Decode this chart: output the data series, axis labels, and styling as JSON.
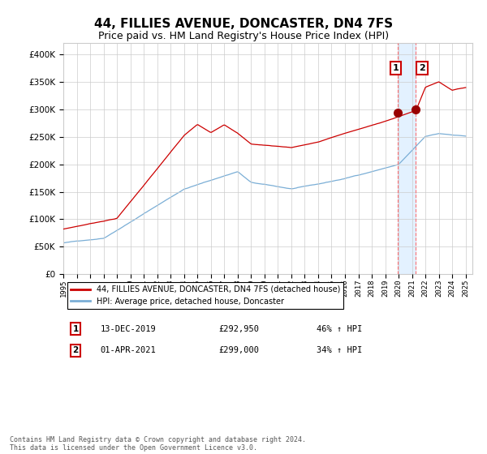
{
  "title": "44, FILLIES AVENUE, DONCASTER, DN4 7FS",
  "subtitle": "Price paid vs. HM Land Registry's House Price Index (HPI)",
  "title_fontsize": 11,
  "subtitle_fontsize": 9,
  "red_label": "44, FILLIES AVENUE, DONCASTER, DN4 7FS (detached house)",
  "blue_label": "HPI: Average price, detached house, Doncaster",
  "annotation1_date": "13-DEC-2019",
  "annotation1_price": "£292,950",
  "annotation1_hpi": "46% ↑ HPI",
  "annotation2_date": "01-APR-2021",
  "annotation2_price": "£299,000",
  "annotation2_hpi": "34% ↑ HPI",
  "footer": "Contains HM Land Registry data © Crown copyright and database right 2024.\nThis data is licensed under the Open Government Licence v3.0.",
  "ylim": [
    0,
    420000
  ],
  "yticks": [
    0,
    50000,
    100000,
    150000,
    200000,
    250000,
    300000,
    350000,
    400000
  ],
  "red_color": "#cc0000",
  "blue_color": "#7aaed6",
  "marker_color": "#990000",
  "vline_color": "#ff6666",
  "shade_color": "#ddeeff",
  "background_color": "#ffffff",
  "grid_color": "#cccccc",
  "annotation_box_color": "#cc0000",
  "year_start": 1995,
  "year_end": 2025,
  "sale1_year": 2019.95,
  "sale2_year": 2021.25,
  "sale1_price": 292950,
  "sale2_price": 299000
}
